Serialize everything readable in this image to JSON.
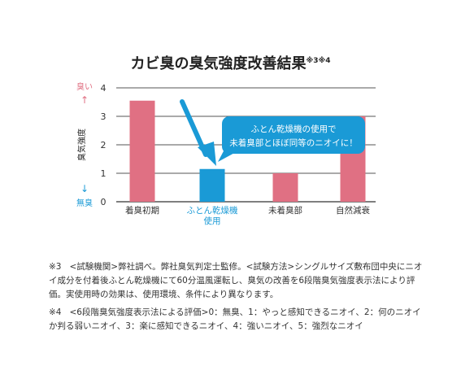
{
  "title": "カビ臭の臭気強度改善結果",
  "title_note": "※3※4",
  "colors": {
    "pink": "#e07083",
    "blue": "#1a9ad6",
    "axis": "#333333",
    "grid": "#555555"
  },
  "chart_data": {
    "type": "bar",
    "ylabel": "臭気強度",
    "y_top_label": "臭い",
    "y_top_arrow": "↑",
    "y_bottom_label": "無臭",
    "y_bottom_arrow": "↓",
    "ylim": [
      0,
      4
    ],
    "yticks": [
      "0",
      "1",
      "2",
      "3",
      "4"
    ],
    "categories": [
      "着臭初期",
      "ふとん乾燥機使用",
      "未着臭部",
      "自然減衰"
    ],
    "category_lines": [
      [
        "着臭初期"
      ],
      [
        "ふとん乾燥機",
        "使用"
      ],
      [
        "未着臭部"
      ],
      [
        "自然減衰"
      ]
    ],
    "values": [
      3.55,
      1.15,
      1.0,
      3.0
    ],
    "highlight_index": 1,
    "callout_lines": [
      "ふとん乾燥機の使用で",
      "未着臭部とほぼ同等のニオイに！"
    ]
  },
  "notes": [
    {
      "id": "※3",
      "text": "<試験機関>弊社調べ。弊社臭気判定士監修。<試験方法>シングルサイズ敷布団中央にニオイ成分を付着後ふとん乾燥機にて60分温風運転し、臭気の改善を6段階臭気強度表示法により評価。実使用時の効果は、使用環境、条件により異なります。"
    },
    {
      "id": "※4",
      "text": "<6段階臭気強度表示法による評価>0：無臭、1：やっと感知できるニオイ、2：何のニオイか判る弱いニオイ、3：楽に感知できるニオイ、4：強いニオイ、5：強烈なニオイ"
    }
  ]
}
